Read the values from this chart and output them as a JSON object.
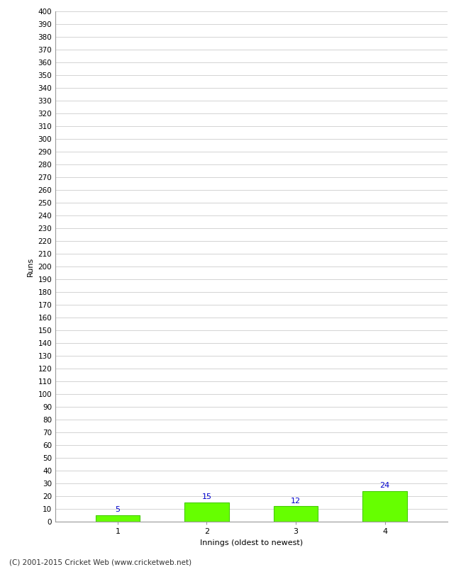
{
  "categories": [
    1,
    2,
    3,
    4
  ],
  "values": [
    5,
    15,
    12,
    24
  ],
  "bar_color": "#66ff00",
  "bar_edgecolor": "#44cc00",
  "label_color": "#0000cc",
  "xlabel": "Innings (oldest to newest)",
  "ylabel": "Runs",
  "ylim": [
    0,
    400
  ],
  "ytick_step": 10,
  "background_color": "#ffffff",
  "grid_color": "#cccccc",
  "footer": "(C) 2001-2015 Cricket Web (www.cricketweb.net)"
}
